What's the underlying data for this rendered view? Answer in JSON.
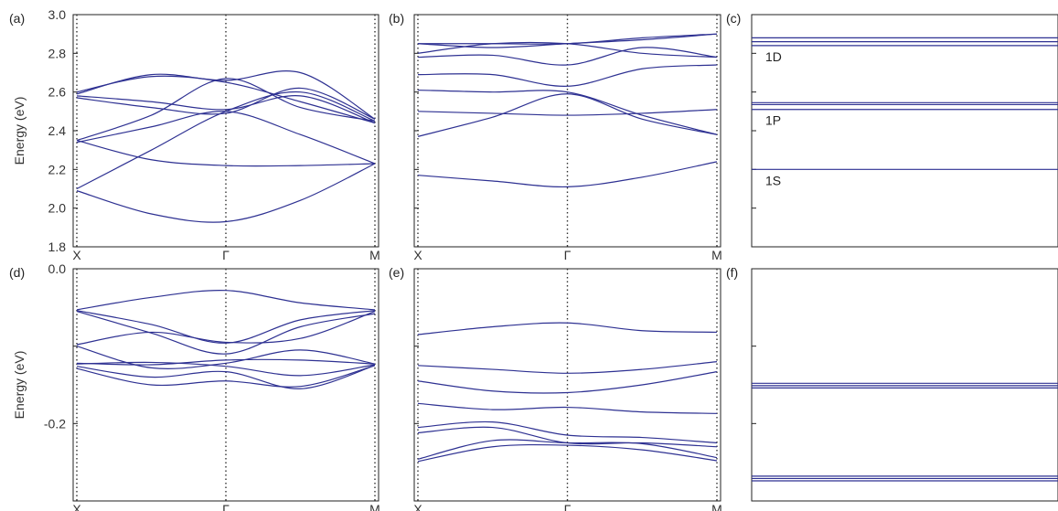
{
  "band_color": "#2e3192",
  "chart_data": [
    {
      "id": "a",
      "type": "line",
      "panel_label": "(a)",
      "ylabel": "Energy (eV)",
      "ylim": [
        1.8,
        3.0
      ],
      "yticks": [
        1.8,
        2.0,
        2.2,
        2.4,
        2.6,
        2.8,
        3.0
      ],
      "ytick_labels": [
        "1.8",
        "2.0",
        "2.2",
        "2.4",
        "2.6",
        "2.8",
        "3.0"
      ],
      "kpoint_labels": [
        "X",
        "Γ",
        "M"
      ],
      "x_positions": [
        0,
        1,
        2
      ],
      "series": [
        {
          "x": [
            0,
            0.5,
            1,
            1.5,
            2
          ],
          "y": [
            2.09,
            1.97,
            1.93,
            2.04,
            2.23
          ]
        },
        {
          "x": [
            0,
            0.5,
            1,
            1.5,
            2
          ],
          "y": [
            2.1,
            2.3,
            2.5,
            2.6,
            2.45
          ]
        },
        {
          "x": [
            0,
            0.5,
            1,
            1.5,
            2
          ],
          "y": [
            2.35,
            2.25,
            2.22,
            2.22,
            2.23
          ]
        },
        {
          "x": [
            0,
            0.5,
            1,
            1.5,
            2
          ],
          "y": [
            2.34,
            2.42,
            2.5,
            2.38,
            2.23
          ]
        },
        {
          "x": [
            0,
            0.5,
            1,
            1.5,
            2
          ],
          "y": [
            2.35,
            2.48,
            2.67,
            2.52,
            2.45
          ]
        },
        {
          "x": [
            0,
            0.5,
            1,
            1.5,
            2
          ],
          "y": [
            2.57,
            2.52,
            2.49,
            2.62,
            2.46
          ]
        },
        {
          "x": [
            0,
            0.5,
            1,
            1.5,
            2
          ],
          "y": [
            2.58,
            2.55,
            2.51,
            2.58,
            2.44
          ]
        },
        {
          "x": [
            0,
            0.5,
            1,
            1.5,
            2
          ],
          "y": [
            2.59,
            2.69,
            2.66,
            2.7,
            2.46
          ]
        },
        {
          "x": [
            0,
            0.5,
            1,
            1.5,
            2
          ],
          "y": [
            2.6,
            2.68,
            2.65,
            2.55,
            2.44
          ]
        }
      ]
    },
    {
      "id": "b",
      "type": "line",
      "panel_label": "(b)",
      "ylim": [
        1.8,
        3.0
      ],
      "yticks": [
        1.8,
        2.0,
        2.2,
        2.4,
        2.6,
        2.8,
        3.0
      ],
      "kpoint_labels": [
        "X",
        "Γ",
        "M"
      ],
      "x_positions": [
        0,
        1,
        2
      ],
      "series": [
        {
          "x": [
            0,
            0.5,
            1,
            1.5,
            2
          ],
          "y": [
            2.17,
            2.14,
            2.11,
            2.16,
            2.24
          ]
        },
        {
          "x": [
            0,
            0.5,
            1,
            1.5,
            2
          ],
          "y": [
            2.37,
            2.47,
            2.59,
            2.46,
            2.38
          ]
        },
        {
          "x": [
            0,
            0.5,
            1,
            1.5,
            2
          ],
          "y": [
            2.5,
            2.49,
            2.48,
            2.49,
            2.51
          ]
        },
        {
          "x": [
            0,
            0.5,
            1,
            1.5,
            2
          ],
          "y": [
            2.61,
            2.6,
            2.6,
            2.48,
            2.38
          ]
        },
        {
          "x": [
            0,
            0.5,
            1,
            1.5,
            2
          ],
          "y": [
            2.69,
            2.69,
            2.63,
            2.72,
            2.74
          ]
        },
        {
          "x": [
            0,
            0.5,
            1,
            1.5,
            2
          ],
          "y": [
            2.78,
            2.79,
            2.74,
            2.83,
            2.78
          ]
        },
        {
          "x": [
            0,
            0.5,
            1,
            1.5,
            2
          ],
          "y": [
            2.8,
            2.85,
            2.85,
            2.8,
            2.78
          ]
        },
        {
          "x": [
            0,
            0.5,
            1,
            1.5,
            2
          ],
          "y": [
            2.85,
            2.83,
            2.85,
            2.87,
            2.9
          ]
        },
        {
          "x": [
            0,
            0.5,
            1,
            1.5,
            2
          ],
          "y": [
            2.85,
            2.85,
            2.85,
            2.88,
            2.9
          ]
        }
      ]
    },
    {
      "id": "c",
      "type": "line",
      "panel_label": "(c)",
      "ylim": [
        1.8,
        3.0
      ],
      "yticks": [
        1.8,
        2.0,
        2.2,
        2.4,
        2.6,
        2.8,
        3.0
      ],
      "levels": [
        2.2,
        2.51,
        2.535,
        2.545,
        2.84,
        2.86,
        2.88
      ],
      "level_labels": [
        {
          "text": "1S",
          "y": 2.2
        },
        {
          "text": "1P",
          "y": 2.51
        },
        {
          "text": "1D",
          "y": 2.84
        }
      ]
    },
    {
      "id": "d",
      "type": "line",
      "panel_label": "(d)",
      "ylabel": "Energy (eV)",
      "ylim": [
        -0.3,
        0.0
      ],
      "yticks": [
        -0.3,
        -0.2,
        -0.1,
        0.0
      ],
      "ytick_labels": [
        "",
        "-0.2",
        "",
        "0.0"
      ],
      "kpoint_labels": [
        "X",
        "Γ",
        "M"
      ],
      "x_positions": [
        0,
        1,
        2
      ],
      "series": [
        {
          "x": [
            0,
            0.5,
            1,
            1.5,
            2
          ],
          "y": [
            -0.053,
            -0.037,
            -0.028,
            -0.044,
            -0.053
          ]
        },
        {
          "x": [
            0,
            0.5,
            1,
            1.5,
            2
          ],
          "y": [
            -0.054,
            -0.072,
            -0.096,
            -0.066,
            -0.054
          ]
        },
        {
          "x": [
            0,
            0.5,
            1,
            1.5,
            2
          ],
          "y": [
            -0.055,
            -0.083,
            -0.11,
            -0.075,
            -0.058
          ]
        },
        {
          "x": [
            0,
            0.5,
            1,
            1.5,
            2
          ],
          "y": [
            -0.098,
            -0.082,
            -0.095,
            -0.09,
            -0.055
          ]
        },
        {
          "x": [
            0,
            0.5,
            1,
            1.5,
            2
          ],
          "y": [
            -0.1,
            -0.128,
            -0.122,
            -0.105,
            -0.123
          ]
        },
        {
          "x": [
            0,
            0.5,
            1,
            1.5,
            2
          ],
          "y": [
            -0.122,
            -0.124,
            -0.118,
            -0.118,
            -0.123
          ]
        },
        {
          "x": [
            0,
            0.5,
            1,
            1.5,
            2
          ],
          "y": [
            -0.123,
            -0.121,
            -0.126,
            -0.138,
            -0.124
          ]
        },
        {
          "x": [
            0,
            0.5,
            1,
            1.5,
            2
          ],
          "y": [
            -0.126,
            -0.14,
            -0.133,
            -0.155,
            -0.125
          ]
        },
        {
          "x": [
            0,
            0.5,
            1,
            1.5,
            2
          ],
          "y": [
            -0.129,
            -0.15,
            -0.145,
            -0.152,
            -0.125
          ]
        }
      ]
    },
    {
      "id": "e",
      "type": "line",
      "panel_label": "(e)",
      "ylim": [
        -0.3,
        0.0
      ],
      "yticks": [
        -0.3,
        -0.2,
        -0.1,
        0.0
      ],
      "kpoint_labels": [
        "X",
        "Γ",
        "M"
      ],
      "x_positions": [
        0,
        1,
        2
      ],
      "series": [
        {
          "x": [
            0,
            0.5,
            1,
            1.5,
            2
          ],
          "y": [
            -0.085,
            -0.075,
            -0.07,
            -0.08,
            -0.082
          ]
        },
        {
          "x": [
            0,
            0.5,
            1,
            1.5,
            2
          ],
          "y": [
            -0.125,
            -0.13,
            -0.135,
            -0.13,
            -0.12
          ]
        },
        {
          "x": [
            0,
            0.5,
            1,
            1.5,
            2
          ],
          "y": [
            -0.145,
            -0.158,
            -0.16,
            -0.15,
            -0.133
          ]
        },
        {
          "x": [
            0,
            0.5,
            1,
            1.5,
            2
          ],
          "y": [
            -0.174,
            -0.182,
            -0.179,
            -0.185,
            -0.187
          ]
        },
        {
          "x": [
            0,
            0.5,
            1,
            1.5,
            2
          ],
          "y": [
            -0.205,
            -0.198,
            -0.215,
            -0.218,
            -0.225
          ]
        },
        {
          "x": [
            0,
            0.5,
            1,
            1.5,
            2
          ],
          "y": [
            -0.212,
            -0.205,
            -0.225,
            -0.225,
            -0.23
          ]
        },
        {
          "x": [
            0,
            0.5,
            1,
            1.5,
            2
          ],
          "y": [
            -0.246,
            -0.222,
            -0.225,
            -0.226,
            -0.244
          ]
        },
        {
          "x": [
            0,
            0.5,
            1,
            1.5,
            2
          ],
          "y": [
            -0.249,
            -0.23,
            -0.228,
            -0.234,
            -0.248
          ]
        }
      ]
    },
    {
      "id": "f",
      "type": "line",
      "panel_label": "(f)",
      "ylim": [
        -0.3,
        0.0
      ],
      "yticks": [
        -0.3,
        -0.2,
        -0.1,
        0.0
      ],
      "levels": [
        -0.148,
        -0.151,
        -0.154,
        -0.268,
        -0.271,
        -0.274
      ]
    }
  ]
}
